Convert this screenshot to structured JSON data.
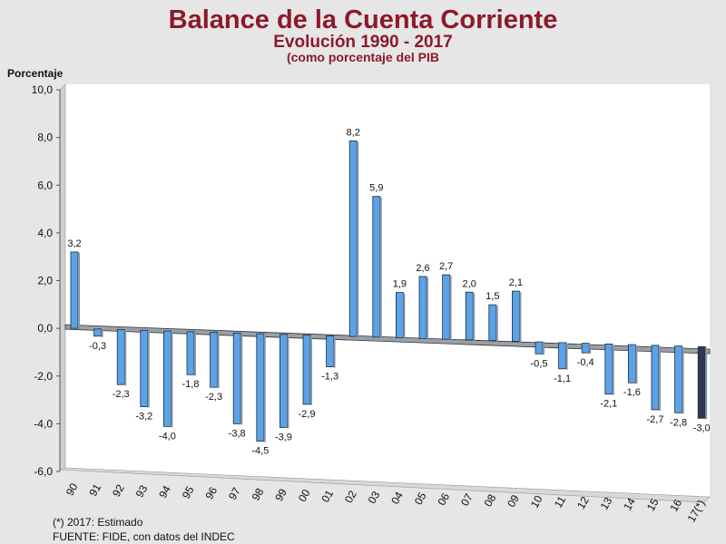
{
  "chart_data": {
    "type": "bar",
    "title": "Balance de la Cuenta Corriente",
    "subtitle": "Evolución 1990 - 2017",
    "subtitle2": "(como porcentaje del PIB",
    "ylabel": "Porcentaje",
    "xlabel": "",
    "ylim": [
      -6,
      10
    ],
    "yticks": [
      "10,0",
      "8,0",
      "6,0",
      "4,0",
      "2,0",
      "0,0",
      "-2,0",
      "-4,0",
      "-6,0"
    ],
    "categories": [
      "90",
      "91",
      "92",
      "93",
      "94",
      "95",
      "96",
      "97",
      "98",
      "99",
      "00",
      "01",
      "02",
      "03",
      "04",
      "05",
      "06",
      "07",
      "08",
      "09",
      "10",
      "11",
      "12",
      "13",
      "14",
      "15",
      "16",
      "17(*)"
    ],
    "values": [
      3.2,
      -0.3,
      -2.3,
      -3.2,
      -4.0,
      -1.8,
      -2.3,
      -3.8,
      -4.5,
      -3.9,
      -2.9,
      -1.3,
      8.2,
      5.9,
      1.9,
      2.6,
      2.7,
      2.0,
      1.5,
      2.1,
      -0.5,
      -1.1,
      -0.4,
      -2.1,
      -1.6,
      -2.7,
      -2.8,
      -3.0
    ],
    "value_labels": [
      "3,2",
      "-0,3",
      "-2,3",
      "-3,2",
      "-4,0",
      "-1,8",
      "-2,3",
      "-3,8",
      "-4,5",
      "-3,9",
      "-2,9",
      "-1,3",
      "8,2",
      "5,9",
      "1,9",
      "2,6",
      "2,7",
      "2,0",
      "1,5",
      "2,1",
      "-0,5",
      "-1,1",
      "-0,4",
      "-2,1",
      "-1,6",
      "-2,7",
      "-2,8",
      "-3,0"
    ],
    "grid": false,
    "legend": "none",
    "colors": {
      "bar": "#5aa3e8",
      "bar_highlight": "#2d3a55",
      "title": "#8b1a2b"
    }
  },
  "notes": {
    "estimate": "(*) 2017: Estimado",
    "source": "FUENTE: FIDE, con datos del INDEC"
  }
}
